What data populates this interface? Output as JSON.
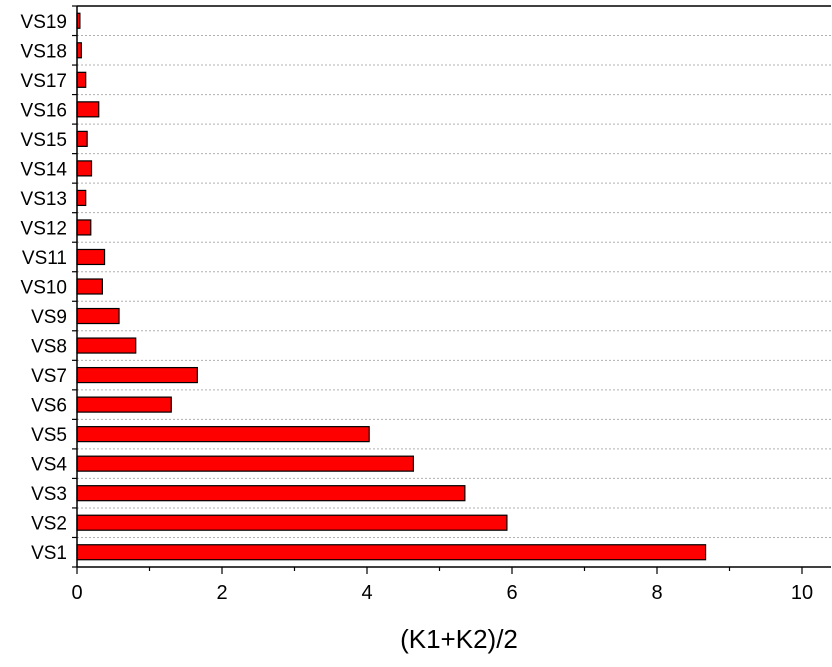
{
  "chart_data": {
    "type": "bar",
    "orientation": "horizontal",
    "categories": [
      "VS1",
      "VS2",
      "VS3",
      "VS4",
      "VS5",
      "VS6",
      "VS7",
      "VS8",
      "VS9",
      "VS10",
      "VS11",
      "VS12",
      "VS13",
      "VS14",
      "VS15",
      "VS16",
      "VS17",
      "VS18",
      "VS19"
    ],
    "values": [
      8.67,
      5.93,
      5.35,
      4.64,
      4.03,
      1.3,
      1.66,
      0.81,
      0.58,
      0.35,
      0.38,
      0.19,
      0.12,
      0.2,
      0.14,
      0.3,
      0.12,
      0.06,
      0.04
    ],
    "xlabel": "(K1+K2)/2",
    "ylabel": "",
    "xlim": [
      0,
      10.4
    ],
    "xticks": [
      0,
      2,
      4,
      6,
      8,
      10
    ],
    "xtick_labels": [
      "0",
      "2",
      "4",
      "6",
      "8",
      "10"
    ],
    "grid": "horizontal dashed",
    "bar_color": "#ff0000",
    "bar_edge_color": "#000000"
  }
}
